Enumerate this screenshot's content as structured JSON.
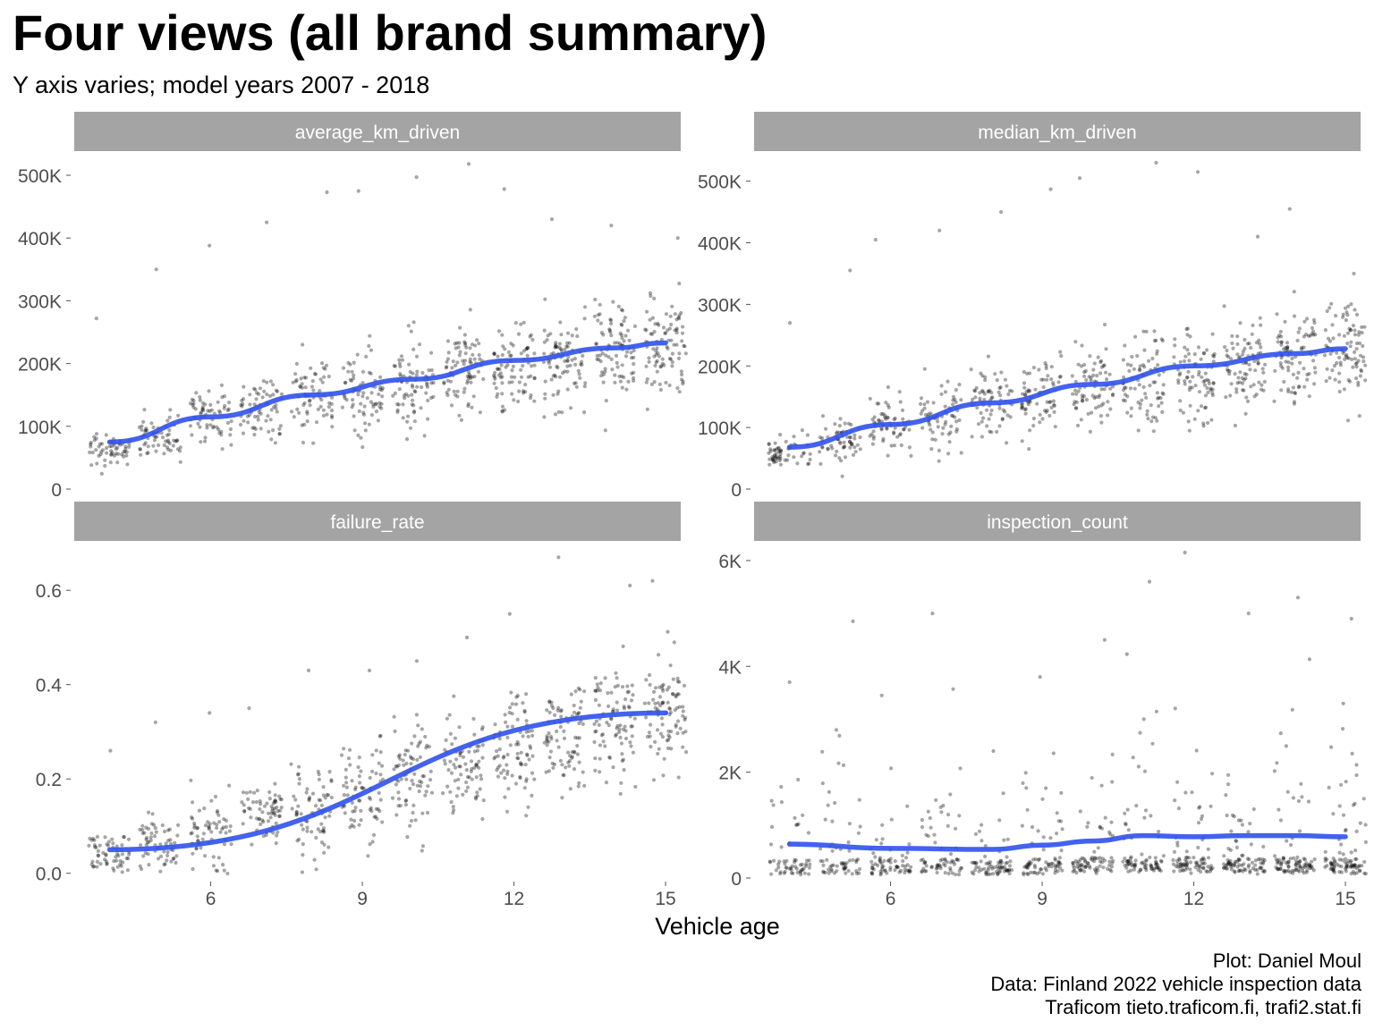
{
  "header": {
    "title": "Four views (all brand summary)",
    "subtitle": "Y axis varies; model years 2007 - 2018"
  },
  "caption": {
    "line1": "Plot: Daniel Moul",
    "line2": "Data: Finland 2022 vehicle inspection data",
    "line3": "Traficom tieto.traficom.fi, trafi2.stat.fi"
  },
  "colors": {
    "trend": "#3355ee",
    "points": "#000000",
    "strip": "#a4a4a4",
    "strip_text": "#ffffff",
    "axis_text": "#4d4d4d"
  },
  "chart_data": {
    "type": "scatter",
    "layout": "facet_wrap 2x2, free y scales",
    "xlabel": "Vehicle age",
    "xlim": [
      3.3,
      15.3
    ],
    "x_ticks": [
      6,
      9,
      12,
      15
    ],
    "x_tick_labels": [
      "6",
      "9",
      "12",
      "15"
    ],
    "grid": false,
    "points_style": "jittered semi-transparent black dots",
    "trend_style": "smoothed line (blue)",
    "x_groups": [
      4,
      5,
      6,
      7,
      8,
      9,
      10,
      11,
      12,
      13,
      14,
      15
    ],
    "facets": [
      {
        "strip_label": "average_km_driven",
        "ylim": [
          0,
          520000
        ],
        "y_ticks": [
          0,
          100000,
          200000,
          300000,
          400000,
          500000
        ],
        "y_tick_labels": [
          "0",
          "100K",
          "200K",
          "300K",
          "400K",
          "500K"
        ],
        "group_center": [
          65000,
          82000,
          115000,
          130000,
          145000,
          155000,
          170000,
          185000,
          195000,
          205000,
          220000,
          230000
        ],
        "group_spread": [
          18000,
          25000,
          35000,
          40000,
          45000,
          50000,
          50000,
          55000,
          55000,
          55000,
          55000,
          55000
        ],
        "trend": {
          "x": [
            4,
            6,
            8,
            10,
            12,
            14,
            15
          ],
          "y": [
            75000,
            115000,
            150000,
            175000,
            205000,
            225000,
            233000
          ]
        },
        "outliers": [
          [
            4,
            272000
          ],
          [
            5,
            350000
          ],
          [
            6,
            388000
          ],
          [
            7,
            425000
          ],
          [
            8,
            473000
          ],
          [
            9,
            475000
          ],
          [
            10,
            497000
          ],
          [
            11,
            518000
          ],
          [
            12,
            478000
          ],
          [
            13,
            430000
          ],
          [
            14,
            420000
          ],
          [
            15,
            400000
          ]
        ]
      },
      {
        "strip_label": "median_km_driven",
        "ylim": [
          0,
          530000
        ],
        "y_ticks": [
          0,
          100000,
          200000,
          300000,
          400000,
          500000
        ],
        "y_tick_labels": [
          "0",
          "100K",
          "200K",
          "300K",
          "400K",
          "500K"
        ],
        "group_center": [
          60000,
          78000,
          105000,
          120000,
          140000,
          150000,
          165000,
          175000,
          190000,
          210000,
          220000,
          225000
        ],
        "group_spread": [
          18000,
          25000,
          32000,
          38000,
          42000,
          45000,
          50000,
          52000,
          55000,
          55000,
          55000,
          55000
        ],
        "trend": {
          "x": [
            4,
            6,
            8,
            10,
            12,
            14,
            15
          ],
          "y": [
            68000,
            105000,
            140000,
            170000,
            200000,
            220000,
            228000
          ]
        },
        "outliers": [
          [
            4,
            270000
          ],
          [
            5,
            355000
          ],
          [
            6,
            405000
          ],
          [
            7,
            420000
          ],
          [
            8,
            450000
          ],
          [
            9,
            487000
          ],
          [
            10,
            505000
          ],
          [
            11,
            530000
          ],
          [
            12,
            515000
          ],
          [
            13,
            410000
          ],
          [
            14,
            455000
          ],
          [
            15,
            350000
          ]
        ]
      },
      {
        "strip_label": "failure_rate",
        "ylim": [
          -0.01,
          0.68
        ],
        "y_ticks": [
          0,
          0.2,
          0.4,
          0.6
        ],
        "y_tick_labels": [
          "0.0",
          "0.2",
          "0.4",
          "0.6"
        ],
        "group_center": [
          0.04,
          0.06,
          0.09,
          0.12,
          0.14,
          0.17,
          0.2,
          0.23,
          0.26,
          0.29,
          0.32,
          0.34
        ],
        "group_spread": [
          0.03,
          0.04,
          0.05,
          0.06,
          0.07,
          0.07,
          0.08,
          0.08,
          0.08,
          0.08,
          0.09,
          0.09
        ],
        "trend": {
          "x": [
            4,
            15
          ],
          "y": [
            0.05,
            0.34
          ]
        },
        "outliers": [
          [
            4,
            0.26
          ],
          [
            5,
            0.32
          ],
          [
            6,
            0.34
          ],
          [
            7,
            0.35
          ],
          [
            8,
            0.43
          ],
          [
            9,
            0.43
          ],
          [
            10,
            0.45
          ],
          [
            11,
            0.5
          ],
          [
            12,
            0.55
          ],
          [
            13,
            0.67
          ],
          [
            14,
            0.61
          ],
          [
            15,
            0.62
          ]
        ]
      },
      {
        "strip_label": "inspection_count",
        "ylim": [
          0,
          6150
        ],
        "y_ticks": [
          0,
          2000,
          4000,
          6000
        ],
        "y_tick_labels": [
          "0",
          "2K",
          "4K",
          "6K"
        ],
        "group_center": [
          300,
          350,
          280,
          320,
          250,
          330,
          380,
          420,
          380,
          350,
          380,
          360
        ],
        "group_spread": [
          350,
          600,
          300,
          500,
          250,
          450,
          550,
          700,
          600,
          500,
          650,
          550
        ],
        "trend": {
          "x": [
            4,
            6,
            8,
            9,
            10,
            11,
            12,
            13,
            14,
            15
          ],
          "y": [
            640,
            560,
            540,
            620,
            700,
            800,
            780,
            800,
            800,
            780
          ]
        },
        "outliers": [
          [
            4,
            3700
          ],
          [
            5,
            4850
          ],
          [
            6,
            3450
          ],
          [
            7,
            5000
          ],
          [
            8,
            2400
          ],
          [
            9,
            3800
          ],
          [
            10,
            4500
          ],
          [
            11,
            5600
          ],
          [
            12,
            6150
          ],
          [
            13,
            5000
          ],
          [
            14,
            5300
          ],
          [
            15,
            4900
          ]
        ]
      }
    ]
  }
}
